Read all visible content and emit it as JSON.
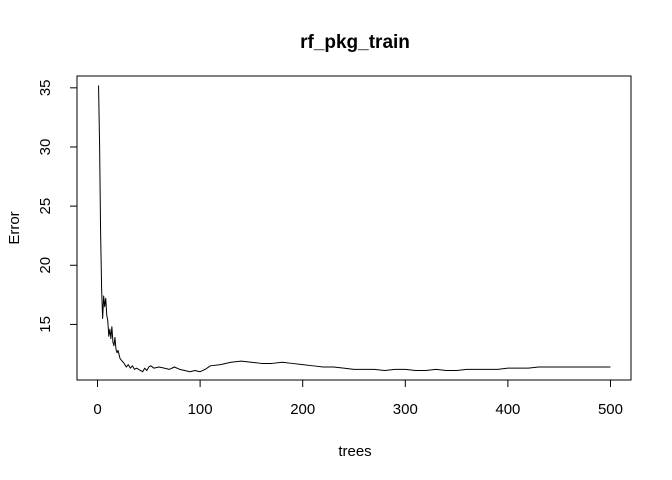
{
  "chart_data": {
    "type": "line",
    "title": "rf_pkg_train",
    "xlabel": "trees",
    "ylabel": "Error",
    "xlim": [
      -20,
      520
    ],
    "ylim": [
      10.3,
      36.0
    ],
    "xticks": [
      0,
      100,
      200,
      300,
      400,
      500
    ],
    "yticks": [
      15,
      20,
      25,
      30,
      35
    ],
    "grid": false,
    "legend": "none",
    "line_color": "#000000",
    "series": [
      {
        "x": [
          1,
          2,
          3,
          4,
          5,
          6,
          7,
          8,
          9,
          10,
          11,
          12,
          13,
          14,
          15,
          16,
          17,
          18,
          19,
          20,
          22,
          24,
          26,
          28,
          30,
          32,
          34,
          36,
          38,
          40,
          42,
          44,
          46,
          48,
          50,
          52,
          55,
          60,
          65,
          70,
          75,
          80,
          85,
          90,
          95,
          100,
          105,
          110,
          120,
          130,
          140,
          150,
          160,
          170,
          180,
          190,
          200,
          210,
          220,
          230,
          240,
          250,
          260,
          270,
          280,
          290,
          300,
          310,
          320,
          330,
          340,
          350,
          360,
          370,
          380,
          390,
          400,
          410,
          420,
          430,
          440,
          450,
          460,
          470,
          480,
          490,
          500
        ],
        "y": [
          35.2,
          30.3,
          22.8,
          18.0,
          15.5,
          17.4,
          16.5,
          17.2,
          15.8,
          15.3,
          14.0,
          14.6,
          13.8,
          14.8,
          13.5,
          13.2,
          13.9,
          12.9,
          12.6,
          12.8,
          12.1,
          11.9,
          11.7,
          11.4,
          11.6,
          11.3,
          11.5,
          11.2,
          11.3,
          11.2,
          11.1,
          11.0,
          11.3,
          11.1,
          11.4,
          11.5,
          11.3,
          11.4,
          11.3,
          11.2,
          11.4,
          11.2,
          11.1,
          11.0,
          11.1,
          11.0,
          11.2,
          11.5,
          11.6,
          11.8,
          11.9,
          11.8,
          11.7,
          11.7,
          11.8,
          11.7,
          11.6,
          11.5,
          11.4,
          11.4,
          11.3,
          11.2,
          11.2,
          11.2,
          11.1,
          11.2,
          11.2,
          11.1,
          11.1,
          11.2,
          11.1,
          11.1,
          11.2,
          11.2,
          11.2,
          11.2,
          11.3,
          11.3,
          11.3,
          11.4,
          11.4,
          11.4,
          11.4,
          11.4,
          11.4,
          11.4,
          11.4
        ]
      }
    ]
  }
}
